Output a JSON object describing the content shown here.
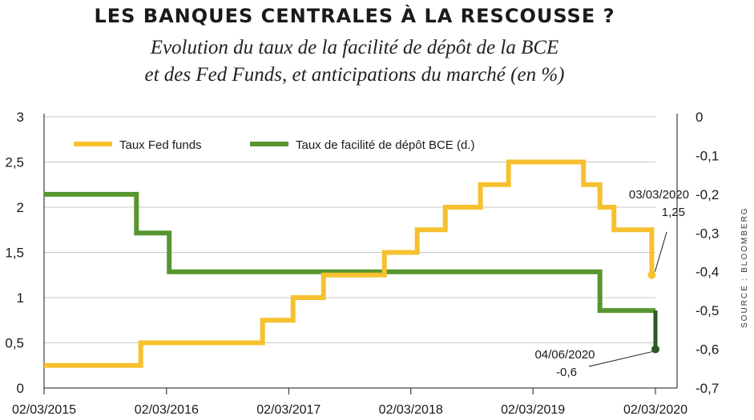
{
  "chart_data": {
    "type": "line",
    "title": "LES BANQUES CENTRALES À LA RESCOUSSE ?",
    "subtitle": [
      "Evolution du taux de la facilité de dépôt de la BCE",
      "et des Fed Funds, et anticipations du marché (en %)"
    ],
    "source": "SOURCE : BLOOMBERG",
    "x_tick_labels": [
      "02/03/2015",
      "02/03/2016",
      "02/03/2017",
      "02/03/2018",
      "02/03/2019",
      "02/03/2020"
    ],
    "x_tick_dates": [
      "2015-03-02",
      "2016-03-02",
      "2017-03-02",
      "2018-03-02",
      "2019-03-02",
      "2020-03-02"
    ],
    "x_range": [
      "2015-03-02",
      "2020-03-02"
    ],
    "y_left": {
      "range": [
        0,
        3
      ],
      "ticks": [
        "0",
        "0,5",
        "1",
        "1,5",
        "2",
        "2,5",
        "3"
      ],
      "tick_values": [
        0,
        0.5,
        1,
        1.5,
        2,
        2.5,
        3
      ]
    },
    "y_right": {
      "range": [
        -0.7,
        0
      ],
      "ticks": [
        "0",
        "-0,1",
        "-0,2",
        "-0,3",
        "-0,4",
        "-0,5",
        "-0,6",
        "-0,7"
      ],
      "tick_values": [
        0,
        -0.1,
        -0.2,
        -0.3,
        -0.4,
        -0.5,
        -0.6,
        -0.7
      ]
    },
    "grid": "horizontal",
    "legend": "top-left",
    "series": [
      {
        "name": "Taux Fed funds",
        "axis": "left",
        "color": "#f6c02f",
        "step": true,
        "points": [
          [
            "2015-03-02",
            0.25
          ],
          [
            "2015-12-16",
            0.5
          ],
          [
            "2016-12-14",
            0.75
          ],
          [
            "2017-03-15",
            1.0
          ],
          [
            "2017-06-14",
            1.25
          ],
          [
            "2017-12-13",
            1.5
          ],
          [
            "2018-03-21",
            1.75
          ],
          [
            "2018-06-13",
            2.0
          ],
          [
            "2018-09-26",
            2.25
          ],
          [
            "2018-12-19",
            2.5
          ],
          [
            "2019-07-31",
            2.25
          ],
          [
            "2019-09-18",
            2.0
          ],
          [
            "2019-10-30",
            1.75
          ],
          [
            "2020-02-20",
            1.75
          ],
          [
            "2020-02-20",
            1.25
          ]
        ],
        "end_marker": true
      },
      {
        "name": "Taux de facilité de dépôt BCE (d.)",
        "axis": "right",
        "color": "#57962f",
        "step": true,
        "points": [
          [
            "2015-03-02",
            -0.2
          ],
          [
            "2015-12-03",
            -0.3
          ],
          [
            "2016-03-10",
            -0.4
          ],
          [
            "2019-09-18",
            -0.5
          ],
          [
            "2020-03-02",
            -0.5
          ]
        ],
        "projection": {
          "color": "#2c5a22",
          "points": [
            [
              "2020-03-02",
              -0.5
            ],
            [
              "2020-03-02",
              -0.6
            ]
          ]
        },
        "end_marker": true
      }
    ],
    "annotations": [
      {
        "label": "03/03/2020",
        "value": "1,25",
        "series": "Taux Fed funds"
      },
      {
        "label": "04/06/2020",
        "value": "-0,6",
        "series": "Taux de facilité de dépôt BCE (d.)"
      }
    ]
  }
}
